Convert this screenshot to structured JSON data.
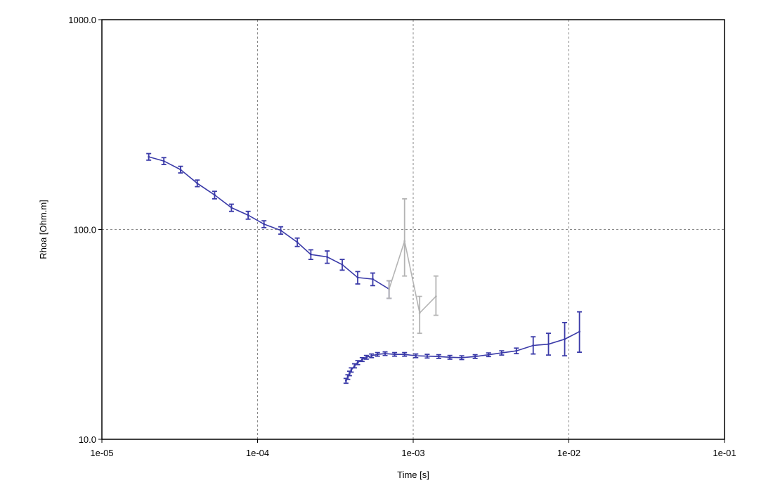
{
  "chart_data": {
    "type": "line",
    "title": "",
    "xlabel": "Time [s]",
    "ylabel": "Rhoa [Ohm.m]",
    "xscale": "log",
    "yscale": "log",
    "xlim": [
      1e-05,
      0.1
    ],
    "ylim": [
      10,
      1000
    ],
    "grid": true,
    "x_ticks": [
      1e-05,
      0.0001,
      0.001,
      0.01,
      0.1
    ],
    "x_tick_labels": [
      "1e-05",
      "1e-04",
      "1e-03",
      "1e-02",
      "1e-01"
    ],
    "y_ticks": [
      10,
      100,
      1000
    ],
    "y_tick_labels": [
      "10.0",
      "100.0",
      "1000.0"
    ],
    "series": [
      {
        "color": "#3a3aa8",
        "marker": "error-bar",
        "points": [
          {
            "x": 2e-05,
            "y": 222,
            "lo": 214,
            "hi": 230
          },
          {
            "x": 2.5e-05,
            "y": 212,
            "lo": 204,
            "hi": 220
          },
          {
            "x": 3.2e-05,
            "y": 193,
            "lo": 186,
            "hi": 200
          },
          {
            "x": 4.1e-05,
            "y": 166,
            "lo": 160,
            "hi": 172
          },
          {
            "x": 5.3e-05,
            "y": 146,
            "lo": 140,
            "hi": 152
          },
          {
            "x": 6.8e-05,
            "y": 127,
            "lo": 122,
            "hi": 132
          },
          {
            "x": 8.7e-05,
            "y": 117,
            "lo": 112,
            "hi": 122
          },
          {
            "x": 0.00011,
            "y": 106,
            "lo": 102,
            "hi": 110
          },
          {
            "x": 0.000141,
            "y": 99,
            "lo": 95,
            "hi": 103
          },
          {
            "x": 0.00018,
            "y": 87,
            "lo": 83,
            "hi": 91
          },
          {
            "x": 0.00022,
            "y": 76,
            "lo": 72,
            "hi": 80
          },
          {
            "x": 0.00028,
            "y": 74,
            "lo": 69,
            "hi": 79
          },
          {
            "x": 0.00035,
            "y": 68,
            "lo": 64,
            "hi": 72
          },
          {
            "x": 0.00044,
            "y": 59,
            "lo": 55,
            "hi": 63
          },
          {
            "x": 0.00055,
            "y": 58,
            "lo": 54,
            "hi": 62
          },
          {
            "x": 0.0007,
            "y": 52,
            "lo": 47,
            "hi": 57
          }
        ]
      },
      {
        "color": "#b4b4b4",
        "marker": "error-bar",
        "points": [
          {
            "x": 0.0007,
            "y": 52,
            "lo": 47,
            "hi": 57
          },
          {
            "x": 0.00088,
            "y": 88,
            "lo": 60,
            "hi": 140
          },
          {
            "x": 0.0011,
            "y": 40,
            "lo": 32,
            "hi": 48
          },
          {
            "x": 0.0014,
            "y": 48,
            "lo": 39,
            "hi": 60
          }
        ]
      },
      {
        "color": "#3a3aa8",
        "marker": "error-bar",
        "points": [
          {
            "x": 0.00037,
            "y": 19.0,
            "lo": 18.5,
            "hi": 19.5
          },
          {
            "x": 0.00038,
            "y": 19.8,
            "lo": 19.3,
            "hi": 20.3
          },
          {
            "x": 0.00039,
            "y": 20.6,
            "lo": 20.1,
            "hi": 21.1
          },
          {
            "x": 0.0004,
            "y": 21.4,
            "lo": 20.9,
            "hi": 21.9
          },
          {
            "x": 0.00042,
            "y": 22.4,
            "lo": 21.9,
            "hi": 22.9
          },
          {
            "x": 0.00044,
            "y": 23.2,
            "lo": 22.7,
            "hi": 23.7
          },
          {
            "x": 0.00047,
            "y": 24.0,
            "lo": 23.5,
            "hi": 24.5
          },
          {
            "x": 0.0005,
            "y": 24.6,
            "lo": 24.1,
            "hi": 25.1
          },
          {
            "x": 0.00054,
            "y": 25.0,
            "lo": 24.5,
            "hi": 25.5
          },
          {
            "x": 0.00059,
            "y": 25.4,
            "lo": 24.9,
            "hi": 25.9
          },
          {
            "x": 0.00066,
            "y": 25.6,
            "lo": 25.1,
            "hi": 26.1
          },
          {
            "x": 0.00076,
            "y": 25.4,
            "lo": 24.9,
            "hi": 25.9
          },
          {
            "x": 0.00088,
            "y": 25.4,
            "lo": 24.9,
            "hi": 25.9
          },
          {
            "x": 0.00104,
            "y": 25.0,
            "lo": 24.5,
            "hi": 25.5
          },
          {
            "x": 0.00123,
            "y": 24.9,
            "lo": 24.4,
            "hi": 25.4
          },
          {
            "x": 0.00146,
            "y": 24.8,
            "lo": 24.3,
            "hi": 25.3
          },
          {
            "x": 0.00172,
            "y": 24.6,
            "lo": 24.1,
            "hi": 25.1
          },
          {
            "x": 0.00205,
            "y": 24.5,
            "lo": 24.0,
            "hi": 25.0
          },
          {
            "x": 0.0025,
            "y": 24.8,
            "lo": 24.3,
            "hi": 25.3
          },
          {
            "x": 0.00305,
            "y": 25.3,
            "lo": 24.8,
            "hi": 25.8
          },
          {
            "x": 0.0037,
            "y": 25.8,
            "lo": 25.2,
            "hi": 26.4
          },
          {
            "x": 0.0046,
            "y": 26.4,
            "lo": 25.6,
            "hi": 27.2
          },
          {
            "x": 0.0059,
            "y": 28.0,
            "lo": 25.5,
            "hi": 30.8
          },
          {
            "x": 0.0074,
            "y": 28.4,
            "lo": 25.2,
            "hi": 32.0
          },
          {
            "x": 0.0094,
            "y": 30.0,
            "lo": 25.0,
            "hi": 36.0
          },
          {
            "x": 0.0117,
            "y": 32.6,
            "lo": 26.0,
            "hi": 40.5
          }
        ]
      }
    ]
  }
}
